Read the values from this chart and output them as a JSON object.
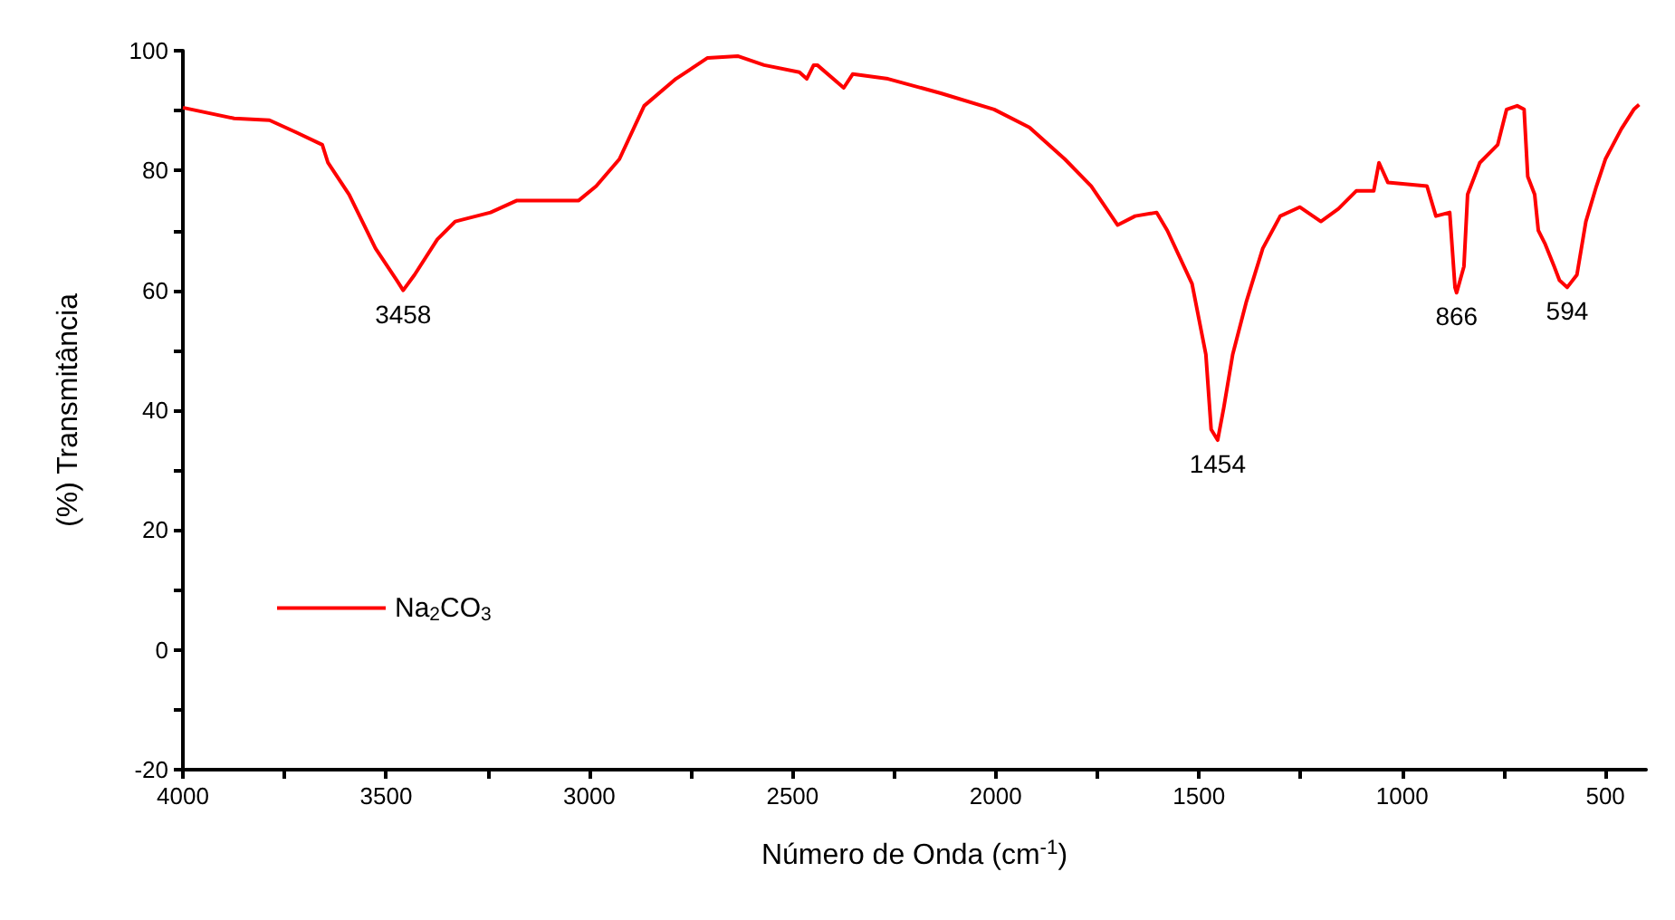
{
  "chart_data": {
    "type": "line",
    "xlabel": "Número de Onda (cm$^{-1}$)",
    "ylabel": "(%) Transmitância",
    "xlim": [
      4000,
      400
    ],
    "ylim": [
      -20,
      100
    ],
    "xticks": [
      4000,
      {
        "value": 3750,
        "label": null
      },
      3500,
      {
        "value": 3250,
        "label": null
      },
      3000,
      {
        "value": 2750,
        "label": null
      },
      2500,
      {
        "value": 2250,
        "label": null
      },
      2000,
      {
        "value": 1750,
        "label": null
      },
      1500,
      {
        "value": 1250,
        "label": null
      },
      1000,
      {
        "value": 750,
        "label": null
      },
      500
    ],
    "yticks": [
      -20,
      {
        "value": -10,
        "label": null
      },
      0,
      {
        "value": 10,
        "label": null
      },
      20,
      {
        "value": 30,
        "label": null
      },
      40,
      {
        "value": 50,
        "label": null
      },
      60,
      {
        "value": 70,
        "label": null
      },
      80,
      {
        "value": 90,
        "label": null
      },
      100
    ],
    "grid": false,
    "legend": "bottom left",
    "marker": "none",
    "line_style": "solid",
    "x": [
      4000,
      3874,
      3787,
      3722,
      3657,
      3643,
      3591,
      3526,
      3474,
      3458,
      3430,
      3374,
      3330,
      3243,
      3178,
      3026,
      2983,
      2926,
      2865,
      2787,
      2709,
      2635,
      2570,
      2483,
      2465,
      2448,
      2439,
      2374,
      2352,
      2265,
      2135,
      2004,
      1917,
      1830,
      1765,
      1700,
      1657,
      1604,
      1578,
      1517,
      1483,
      1470,
      1454,
      1439,
      1417,
      1383,
      1343,
      1300,
      1252,
      1200,
      1157,
      1113,
      1070,
      1057,
      1035,
      939,
      917,
      883,
      870,
      866,
      848,
      839,
      809,
      765,
      743,
      717,
      700,
      691,
      674,
      665,
      648,
      626,
      613,
      594,
      570,
      548,
      522,
      500,
      461,
      430,
      417
    ],
    "series": [
      {
        "name": "Na$_{2}$CO$_{3}$",
        "color": "#ff0000",
        "values": [
          90.5,
          88.7,
          88.4,
          86.4,
          84.3,
          81.3,
          76,
          67,
          61.7,
          60,
          62.6,
          68.5,
          71.5,
          73,
          75,
          75,
          77.4,
          81.9,
          90.8,
          95.3,
          98.8,
          99.1,
          97.6,
          96.4,
          95.3,
          97.6,
          97.6,
          93.8,
          96.1,
          95.3,
          92.9,
          90.2,
          87.2,
          81.9,
          77.4,
          70.9,
          72.4,
          73,
          70,
          61.1,
          49.3,
          36.8,
          35,
          40.4,
          49.3,
          58.2,
          67,
          72.4,
          73.9,
          71.5,
          73.6,
          76.6,
          76.6,
          81.3,
          78,
          77.4,
          72.4,
          73,
          60.5,
          59.6,
          64,
          76,
          81.3,
          84.3,
          90.2,
          90.8,
          90.2,
          79,
          76,
          70,
          67.7,
          64,
          61.7,
          60.5,
          62.6,
          71.5,
          77.4,
          81.9,
          86.9,
          90.2,
          91
        ]
      }
    ],
    "annotations": [
      {
        "text": "3458",
        "x": 3458,
        "y": 60
      },
      {
        "text": "1454",
        "x": 1454,
        "y": 35
      },
      {
        "text": "866",
        "x": 866,
        "y": 59.6
      },
      {
        "text": "594",
        "x": 594,
        "y": 60.5
      }
    ]
  }
}
